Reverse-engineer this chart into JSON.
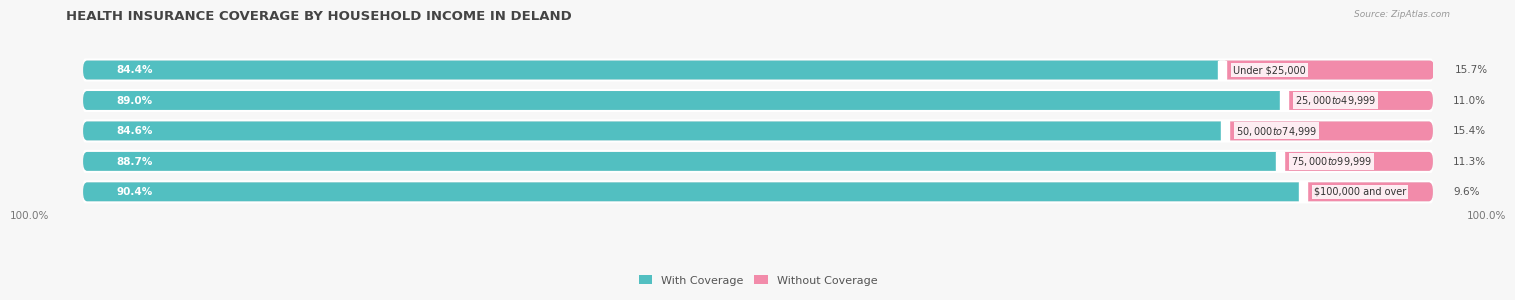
{
  "title": "HEALTH INSURANCE COVERAGE BY HOUSEHOLD INCOME IN DELAND",
  "source": "Source: ZipAtlas.com",
  "categories": [
    "Under $25,000",
    "$25,000 to $49,999",
    "$50,000 to $74,999",
    "$75,000 to $99,999",
    "$100,000 and over"
  ],
  "with_coverage": [
    84.4,
    89.0,
    84.6,
    88.7,
    90.4
  ],
  "without_coverage": [
    15.7,
    11.0,
    15.4,
    11.3,
    9.6
  ],
  "color_with": "#52bfc1",
  "color_without": "#f28baa",
  "background_color": "#f7f7f7",
  "bar_bg_color": "#e2e2e2",
  "title_fontsize": 9.5,
  "label_fontsize": 7.5,
  "tick_fontsize": 7.5,
  "legend_fontsize": 8,
  "bar_height": 0.62,
  "row_sep_color": "#ffffff"
}
